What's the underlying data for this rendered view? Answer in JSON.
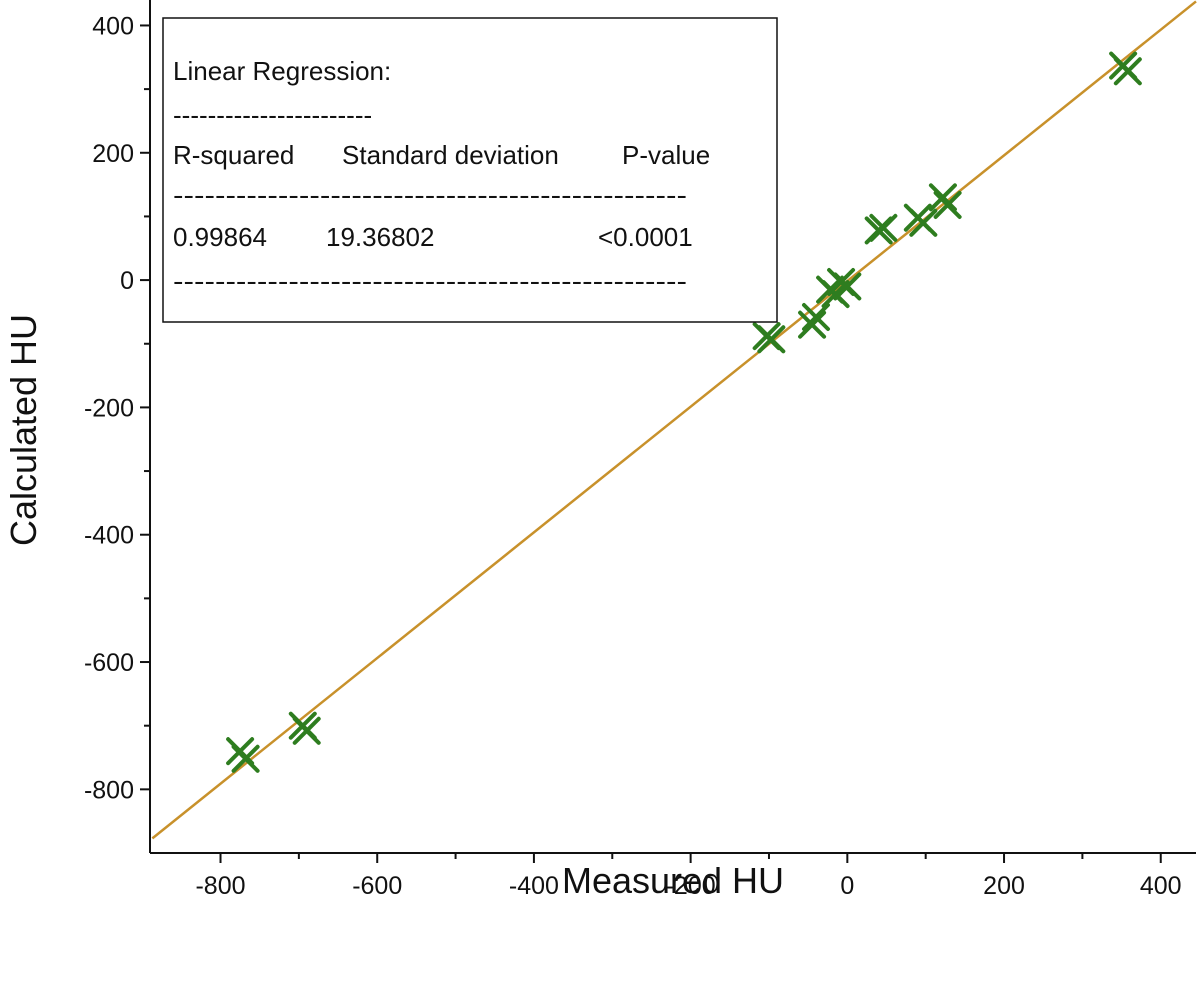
{
  "chart_data": {
    "type": "scatter",
    "xlabel": "Measured HU",
    "ylabel": "Calculated HU",
    "xlim": [
      -890,
      445
    ],
    "ylim": [
      -900,
      440
    ],
    "x_ticks": [
      -800,
      -600,
      -400,
      -200,
      0,
      200,
      400
    ],
    "y_ticks": [
      -800,
      -600,
      -400,
      -200,
      0,
      200,
      400
    ],
    "grid": false,
    "marker": "crossed-x",
    "colors": {
      "points": "#2e7d1f",
      "fit_line": "#c8912b",
      "axes": "#111111"
    },
    "series": [
      {
        "points": [
          {
            "x": -775,
            "y": -740
          },
          {
            "x": -768,
            "y": -752
          },
          {
            "x": -695,
            "y": -700
          },
          {
            "x": -690,
            "y": -708
          },
          {
            "x": -103,
            "y": -88
          },
          {
            "x": -97,
            "y": -93
          },
          {
            "x": -45,
            "y": -70
          },
          {
            "x": -40,
            "y": -58
          },
          {
            "x": -22,
            "y": -15
          },
          {
            "x": -15,
            "y": -22
          },
          {
            "x": -8,
            "y": -3
          },
          {
            "x": 0,
            "y": -10
          },
          {
            "x": 40,
            "y": 78
          },
          {
            "x": 46,
            "y": 82
          },
          {
            "x": 90,
            "y": 98
          },
          {
            "x": 97,
            "y": 90
          },
          {
            "x": 122,
            "y": 130
          },
          {
            "x": 128,
            "y": 118
          },
          {
            "x": 352,
            "y": 337
          },
          {
            "x": 358,
            "y": 328
          }
        ]
      }
    ],
    "fit_line": {
      "slope": 0.987,
      "intercept": -1.5,
      "x_range": [
        -887,
        445
      ]
    },
    "annotation": {
      "title": "Linear Regression:",
      "rule_short": "-----------------------",
      "headers": [
        "R-squared",
        "Standard deviation",
        "P-value"
      ],
      "rule_long": "-------------------------------------------------",
      "values": [
        "0.99864",
        "19.36802",
        "<0.0001"
      ]
    }
  }
}
